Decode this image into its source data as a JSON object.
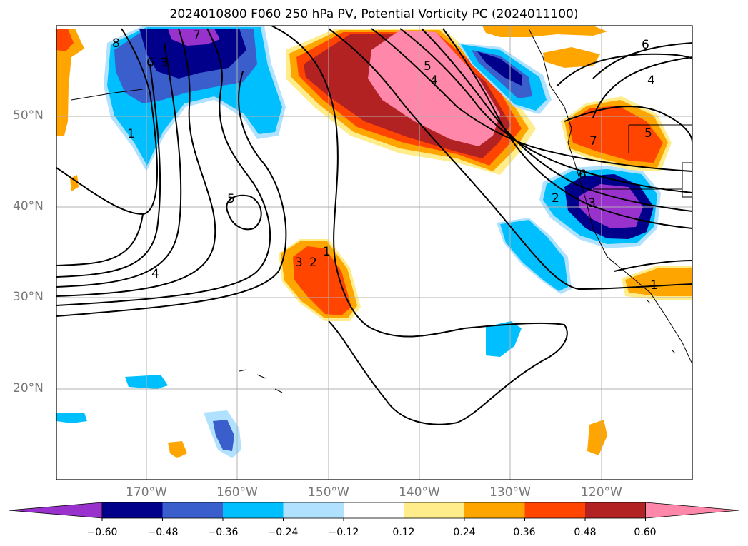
{
  "title": "2024010800 F060 250 hPa PV, Potential Vorticity PC (2024011100)",
  "lat_labels": [
    "50°N",
    "40°N",
    "30°N",
    "20°N"
  ],
  "lon_labels": [
    "170°W",
    "160°W",
    "150°W",
    "140°W",
    "130°W",
    "120°W"
  ],
  "colorbar": {
    "tick_labels": [
      "−0.60",
      "−0.48",
      "−0.36",
      "−0.24",
      "−0.12",
      "0.12",
      "0.24",
      "0.36",
      "0.48",
      "0.60"
    ],
    "colors": [
      "#9932cc",
      "#00008b",
      "#3a5fcd",
      "#00bfff",
      "#b0e2ff",
      "#ffffff",
      "#ffec8b",
      "#ffa500",
      "#ff4500",
      "#b22222",
      "#ff88aa"
    ]
  },
  "contour_labels": [
    "8",
    "6",
    "3",
    "7",
    "1",
    "5",
    "4",
    "3",
    "2",
    "1",
    "5",
    "4",
    "6",
    "4",
    "5",
    "7",
    "6",
    "2",
    "3",
    "1"
  ],
  "colors": {
    "gridline": "#b0b0b0",
    "contour": "#000000"
  }
}
